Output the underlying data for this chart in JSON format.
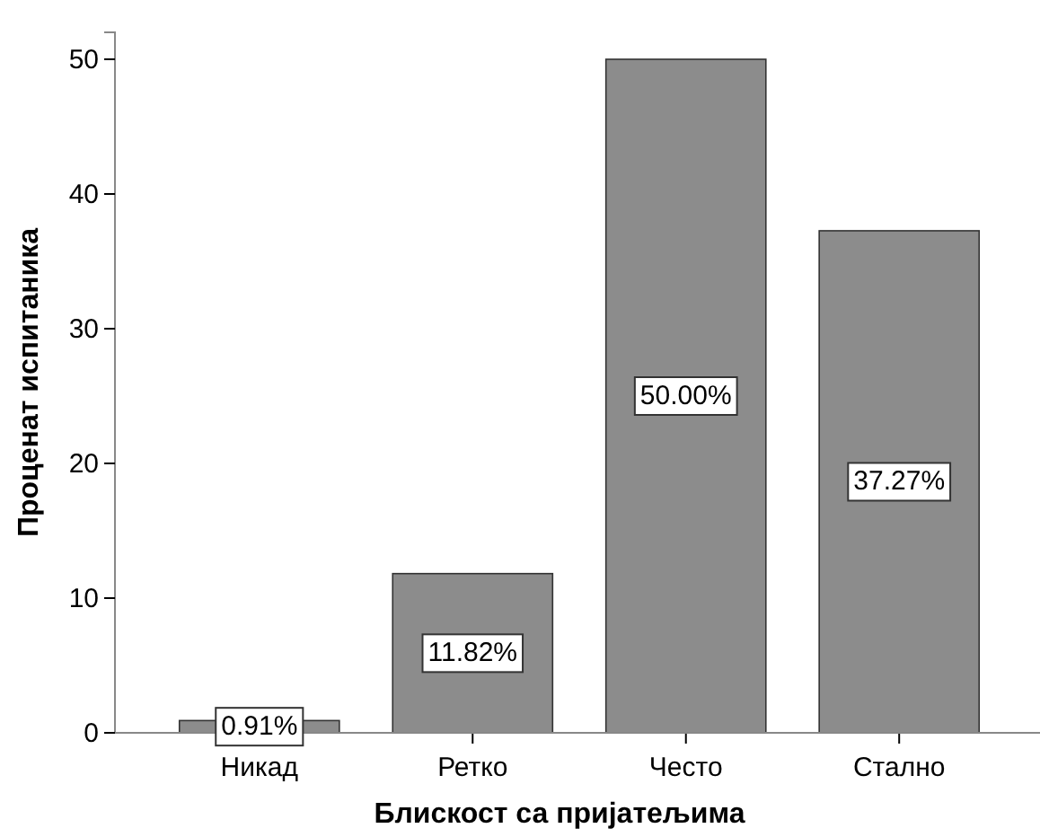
{
  "chart_data": {
    "type": "bar",
    "xlabel": "Блискост са пријатељима",
    "ylabel": "Проценат испитаника",
    "categories": [
      "Никад",
      "Ретко",
      "Често",
      "Стално"
    ],
    "values": [
      0.91,
      11.82,
      50.0,
      37.27
    ],
    "value_labels": [
      "0.91%",
      "11.82%",
      "50.00%",
      "37.27%"
    ],
    "color": "#8c8c8c",
    "ylim": [
      0,
      52
    ],
    "yticks": [
      0,
      10,
      20,
      30,
      40,
      50
    ],
    "grid": false
  }
}
